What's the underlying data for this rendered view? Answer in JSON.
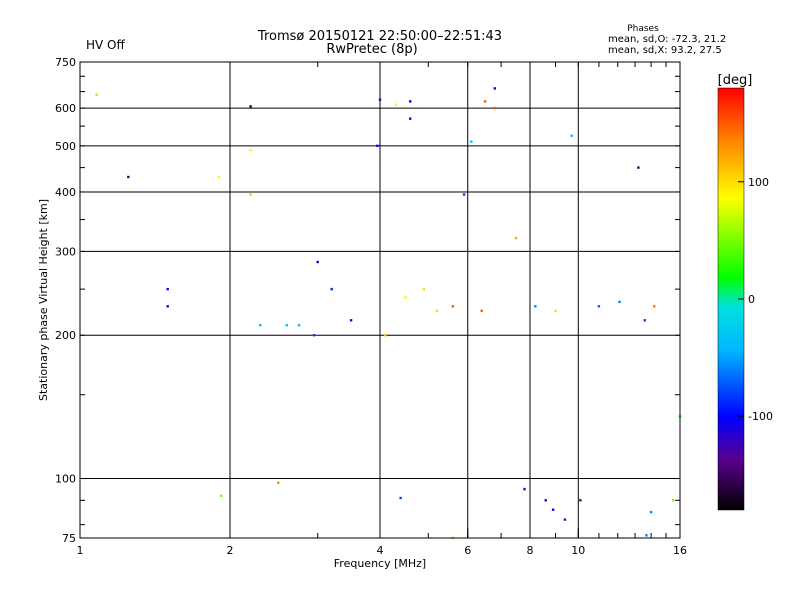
{
  "status": {
    "hv": "HV Off",
    "hv_color": "#cc0000"
  },
  "title": {
    "line1": "Tromsø 20150121 22:50:00–22:51:43",
    "line2": "RwPretec (8p)"
  },
  "stats": {
    "header": "Phases",
    "line_o": "mean, sd,O: -72.3, 21.2",
    "line_x": "mean, sd,X:  93.2, 27.5"
  },
  "colorbar": {
    "label": "[deg]",
    "min": -180,
    "max": 180,
    "ticks": [
      {
        "value": 100,
        "label": "100"
      },
      {
        "value": 0,
        "label": "0"
      },
      {
        "value": -100,
        "label": "-100"
      }
    ]
  },
  "chart_data": {
    "type": "scatter",
    "xlabel": "Frequency [MHz]",
    "ylabel": "Stationary phase Virtual Height [km]",
    "xscale": "log",
    "yscale": "log",
    "xlim": [
      1,
      16
    ],
    "ylim": [
      75,
      750
    ],
    "xticks": [
      {
        "value": 1,
        "label": "1"
      },
      {
        "value": 2,
        "label": "2"
      },
      {
        "value": 4,
        "label": "4"
      },
      {
        "value": 6,
        "label": "6"
      },
      {
        "value": 8,
        "label": "8"
      },
      {
        "value": 10,
        "label": "10"
      },
      {
        "value": 16,
        "label": "16"
      }
    ],
    "yticks": [
      {
        "value": 75,
        "label": "75"
      },
      {
        "value": 100,
        "label": "100"
      },
      {
        "value": 200,
        "label": "200"
      },
      {
        "value": 300,
        "label": "300"
      },
      {
        "value": 400,
        "label": "400"
      },
      {
        "value": 500,
        "label": "500"
      },
      {
        "value": 600,
        "label": "600"
      },
      {
        "value": 750,
        "label": "750"
      }
    ],
    "grid": true,
    "colorscale": "phase",
    "points": [
      [
        1.08,
        640,
        60
      ],
      [
        1.25,
        430,
        -150
      ],
      [
        1.5,
        250,
        -100
      ],
      [
        1.5,
        230,
        -100
      ],
      [
        1.9,
        430,
        80
      ],
      [
        1.92,
        92,
        50
      ],
      [
        2.2,
        490,
        80
      ],
      [
        2.2,
        395,
        110
      ],
      [
        2.2,
        605,
        -160
      ],
      [
        3.0,
        285,
        -100
      ],
      [
        2.95,
        200,
        -80
      ],
      [
        3.5,
        215,
        -120
      ],
      [
        4.0,
        625,
        -110
      ],
      [
        3.95,
        500,
        -100
      ],
      [
        4.3,
        610,
        90
      ],
      [
        4.6,
        620,
        -100
      ],
      [
        4.6,
        570,
        -110
      ],
      [
        5.9,
        395,
        -80
      ],
      [
        6.1,
        510,
        -40
      ],
      [
        6.5,
        620,
        150
      ],
      [
        6.8,
        660,
        -110
      ],
      [
        6.8,
        600,
        150
      ],
      [
        7.5,
        320,
        120
      ],
      [
        9.7,
        525,
        -40
      ],
      [
        13.2,
        450,
        -150
      ],
      [
        14.0,
        85,
        -60
      ],
      [
        15.5,
        90,
        50
      ],
      [
        8.6,
        90,
        -120
      ],
      [
        8.9,
        86,
        -110
      ],
      [
        9.4,
        82,
        -130
      ],
      [
        10.1,
        90,
        -140
      ],
      [
        5.6,
        75,
        60
      ],
      [
        4.4,
        91,
        -80
      ],
      [
        2.5,
        98,
        130
      ],
      [
        13.7,
        76,
        -60
      ],
      [
        7.8,
        95,
        -130
      ],
      [
        16.0,
        135,
        20
      ],
      [
        6.4,
        225,
        150
      ],
      [
        8.2,
        230,
        -60
      ],
      [
        9.0,
        225,
        100
      ],
      [
        11.0,
        230,
        -70
      ],
      [
        12.1,
        235,
        -60
      ],
      [
        13.6,
        215,
        -80
      ],
      [
        14.2,
        230,
        140
      ],
      [
        4.1,
        200,
        110
      ],
      [
        4.5,
        240,
        90
      ],
      [
        4.9,
        250,
        100
      ],
      [
        5.2,
        225,
        100
      ],
      [
        5.6,
        230,
        150
      ],
      [
        2.6,
        210,
        -40
      ],
      [
        3.2,
        250,
        -90
      ],
      [
        2.75,
        210,
        -40
      ],
      [
        2.3,
        210,
        -40
      ]
    ]
  }
}
